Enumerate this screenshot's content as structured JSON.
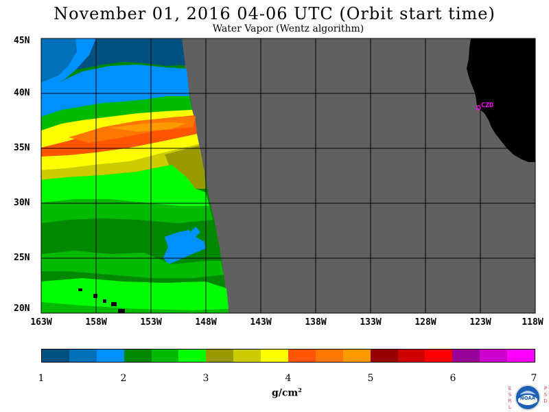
{
  "header": {
    "title": "November 01, 2016  04-06 UTC  (Orbit start time)",
    "subtitle": "Water Vapor (Wentz algorithm)"
  },
  "map": {
    "station_label": "CZD",
    "station_color": "#ff00ff",
    "land_color": "#000000",
    "nodata_color": "#606060",
    "grid_color": "#000000",
    "lat_labels": [
      "45N",
      "40N",
      "35N",
      "30N",
      "25N",
      "20N"
    ],
    "lon_labels": [
      "163W",
      "158W",
      "153W",
      "148W",
      "143W",
      "138W",
      "133W",
      "128W",
      "123W",
      "118W"
    ]
  },
  "colorbar": {
    "colors": [
      "#005080",
      "#0070b8",
      "#0090ff",
      "#008800",
      "#00bb00",
      "#00ff00",
      "#999900",
      "#cccc00",
      "#ffff00",
      "#ff5500",
      "#ff7700",
      "#ff9900",
      "#990000",
      "#cc0000",
      "#ff0000",
      "#990099",
      "#cc00cc",
      "#ff00ff"
    ],
    "tick_labels": [
      "1",
      "2",
      "3",
      "4",
      "5",
      "6",
      "7"
    ],
    "units": "g/cm",
    "units_sup": "2"
  },
  "logo": {
    "left_letters": "ESRL",
    "right_letters": "PSD",
    "badge": "NOAA"
  }
}
